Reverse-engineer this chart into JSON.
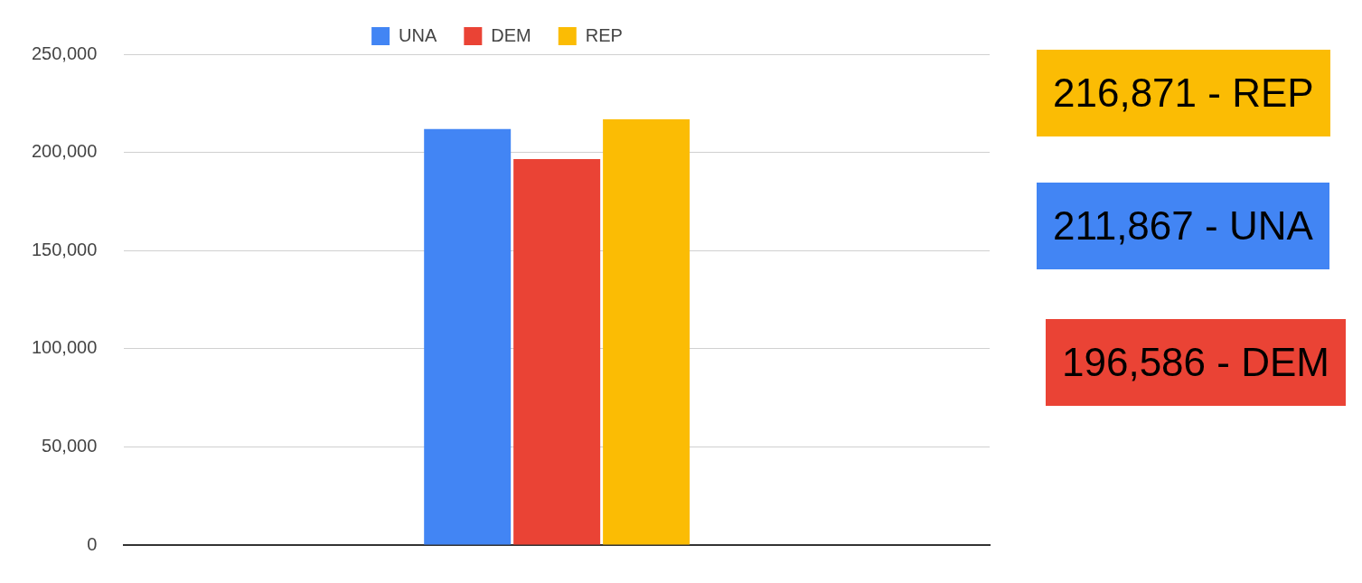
{
  "chart_data": {
    "type": "bar",
    "categories": [
      null
    ],
    "series": [
      {
        "name": "UNA",
        "color": "#4285f4",
        "values": [
          211867
        ]
      },
      {
        "name": "DEM",
        "color": "#ea4335",
        "values": [
          196586
        ]
      },
      {
        "name": "REP",
        "color": "#fbbc04",
        "values": [
          216871
        ]
      }
    ],
    "ylim": [
      0,
      250000
    ],
    "yticks": [
      0,
      {
        "value": 50000,
        "label": "50,000"
      },
      {
        "value": 100000,
        "label": "100,000"
      },
      {
        "value": 150000,
        "label": "150,000"
      },
      {
        "value": 200000,
        "label": "200,000"
      },
      {
        "value": 250000,
        "label": "250,000"
      }
    ],
    "grid": "y",
    "legend": "top",
    "annotations": [
      "216,871 - REP",
      "211,867 - UNA",
      "196,586 - DEM"
    ]
  }
}
